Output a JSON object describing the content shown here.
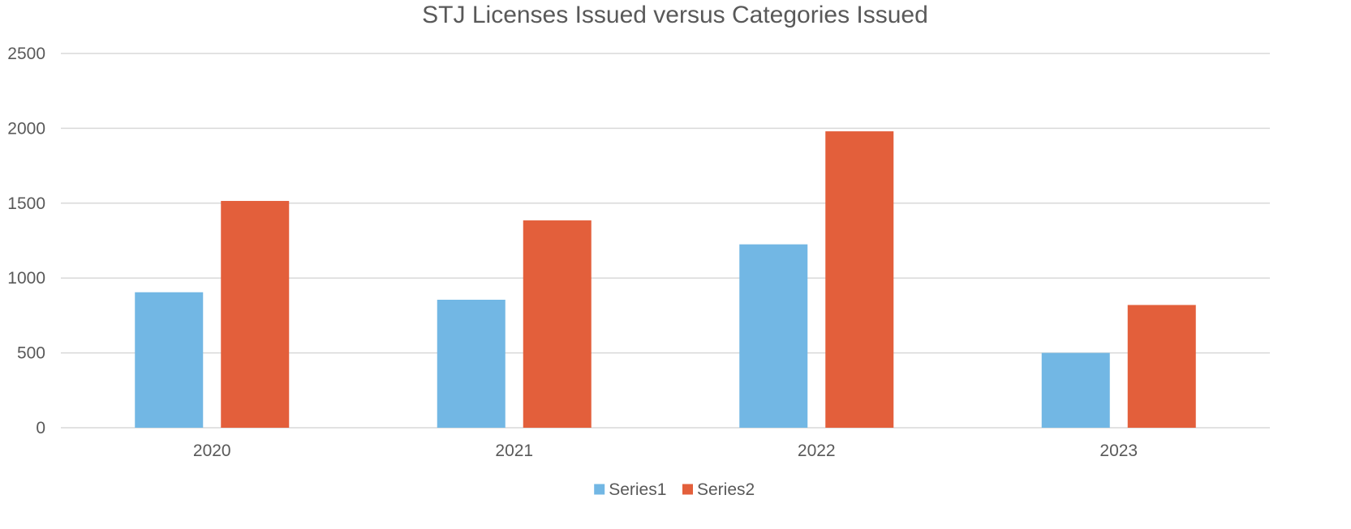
{
  "chart_data": {
    "type": "bar",
    "title": "STJ Licenses Issued versus Categories Issued",
    "xlabel": "",
    "ylabel": "",
    "categories": [
      "2020",
      "2021",
      "2022",
      "2023"
    ],
    "series": [
      {
        "name": "Series1",
        "color": "#72b7e4",
        "values": [
          905,
          855,
          1225,
          500
        ]
      },
      {
        "name": "Series2",
        "color": "#e35f3b",
        "values": [
          1515,
          1385,
          1980,
          820
        ]
      }
    ],
    "ylim": [
      0,
      2500
    ],
    "yticks": [
      "0",
      "500",
      "1000",
      "1500",
      "2000",
      "2500"
    ],
    "grid": true,
    "legend_position": "bottom"
  }
}
